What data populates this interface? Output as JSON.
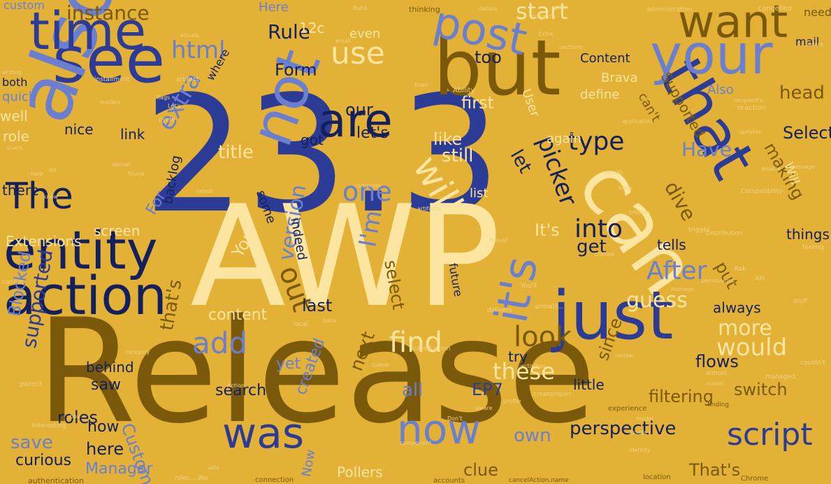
{
  "palette": {
    "background": "#e2b135",
    "navy": "#2b3b96",
    "dark_navy": "#14205e",
    "periwinkle": "#6b7fd1",
    "olive": "#7a5a0a",
    "cream": "#fbe5a1"
  },
  "words": [
    {
      "text": "23.3",
      "cls": "navy"
    },
    {
      "text": "AWP",
      "cls": "cream"
    },
    {
      "text": "Release",
      "cls": "olive"
    },
    {
      "text": "but",
      "cls": "olive"
    },
    {
      "text": "can",
      "cls": "cream"
    },
    {
      "text": "see",
      "cls": "navy"
    },
    {
      "text": "also",
      "cls": "peri"
    },
    {
      "text": "just",
      "cls": "navy"
    },
    {
      "text": "that",
      "cls": "navy"
    },
    {
      "text": "your",
      "cls": "peri"
    },
    {
      "text": "time",
      "cls": "navy"
    },
    {
      "text": "want",
      "cls": "olive"
    },
    {
      "text": "entity",
      "cls": "dark"
    },
    {
      "text": "action",
      "cls": "dark"
    },
    {
      "text": "not",
      "cls": "peri"
    },
    {
      "text": "are",
      "cls": "dark"
    },
    {
      "text": "post",
      "cls": "peri"
    },
    {
      "text": "The",
      "cls": "dark"
    },
    {
      "text": "it's",
      "cls": "peri"
    },
    {
      "text": "was",
      "cls": "navy"
    },
    {
      "text": "now",
      "cls": "peri"
    },
    {
      "text": "will",
      "cls": "cream"
    },
    {
      "text": "script",
      "cls": "navy"
    },
    {
      "text": "find",
      "cls": "cream"
    },
    {
      "text": "add",
      "cls": "peri"
    },
    {
      "text": "use",
      "cls": "cream"
    },
    {
      "text": "one",
      "cls": "peri"
    },
    {
      "text": "look",
      "cls": "olive"
    },
    {
      "text": "these",
      "cls": "cream"
    },
    {
      "text": "would",
      "cls": "cream"
    },
    {
      "text": "into",
      "cls": "dark"
    },
    {
      "text": "After",
      "cls": "peri"
    },
    {
      "text": "type",
      "cls": "dark"
    },
    {
      "text": "out",
      "cls": "olive"
    },
    {
      "text": "html",
      "cls": "peri"
    },
    {
      "text": "version",
      "cls": "peri"
    },
    {
      "text": "I'm",
      "cls": "peri"
    },
    {
      "text": "picker",
      "cls": "dark"
    },
    {
      "text": "guess",
      "cls": "cream"
    },
    {
      "text": "more",
      "cls": "cream"
    },
    {
      "text": "instance",
      "cls": "olive"
    },
    {
      "text": "start",
      "cls": "cream"
    },
    {
      "text": "extra",
      "cls": "peri"
    },
    {
      "text": "Rule",
      "cls": "dark"
    },
    {
      "text": "Form",
      "cls": "dark"
    },
    {
      "text": "our",
      "cls": "dark"
    },
    {
      "text": "let's",
      "cls": "dark"
    },
    {
      "text": "title",
      "cls": "cream"
    },
    {
      "text": "still",
      "cls": "cream"
    },
    {
      "text": "let",
      "cls": "dark"
    },
    {
      "text": "like",
      "cls": "cream"
    },
    {
      "text": "too",
      "cls": "dark"
    },
    {
      "text": "first",
      "cls": "cream"
    },
    {
      "text": "Have",
      "cls": "peri"
    },
    {
      "text": "head",
      "cls": "olive"
    },
    {
      "text": "Select",
      "cls": "dark"
    },
    {
      "text": "making",
      "cls": "olive"
    },
    {
      "text": "dive",
      "cls": "olive"
    },
    {
      "text": "put",
      "cls": "olive"
    },
    {
      "text": "It's",
      "cls": "cream"
    },
    {
      "text": "get",
      "cls": "dark"
    },
    {
      "text": "last",
      "cls": "dark"
    },
    {
      "text": "select",
      "cls": "olive"
    },
    {
      "text": "You",
      "cls": "cream"
    },
    {
      "text": "content",
      "cls": "cream"
    },
    {
      "text": "that's",
      "cls": "olive"
    },
    {
      "text": "supported",
      "cls": "navy"
    },
    {
      "text": "Blocked",
      "cls": "peri"
    },
    {
      "text": "save",
      "cls": "peri"
    },
    {
      "text": "roles",
      "cls": "dark"
    },
    {
      "text": "how",
      "cls": "dark"
    },
    {
      "text": "curious",
      "cls": "dark"
    },
    {
      "text": "Manager",
      "cls": "peri"
    },
    {
      "text": "here",
      "cls": "dark"
    },
    {
      "text": "Custom",
      "cls": "peri"
    },
    {
      "text": "perspective",
      "cls": "dark"
    },
    {
      "text": "own",
      "cls": "peri"
    },
    {
      "text": "clue",
      "cls": "olive"
    },
    {
      "text": "That's",
      "cls": "olive"
    },
    {
      "text": "switch",
      "cls": "olive"
    },
    {
      "text": "filtering",
      "cls": "olive"
    },
    {
      "text": "flows",
      "cls": "dark"
    },
    {
      "text": "since",
      "cls": "olive"
    },
    {
      "text": "EP7",
      "cls": "navy"
    },
    {
      "text": "all",
      "cls": "peri"
    },
    {
      "text": "next",
      "cls": "olive"
    },
    {
      "text": "search",
      "cls": "dark"
    },
    {
      "text": "saw",
      "cls": "dark"
    },
    {
      "text": "behind",
      "cls": "dark"
    },
    {
      "text": "yet",
      "cls": "peri"
    },
    {
      "text": "created",
      "cls": "peri"
    },
    {
      "text": "little",
      "cls": "dark"
    },
    {
      "text": "try",
      "cls": "dark"
    },
    {
      "text": "always",
      "cls": "dark"
    },
    {
      "text": "tells",
      "cls": "dark"
    },
    {
      "text": "things",
      "cls": "dark"
    },
    {
      "text": "screen",
      "cls": "cream"
    },
    {
      "text": "Extensions",
      "cls": "cream"
    },
    {
      "text": "For",
      "cls": "peri"
    },
    {
      "text": "there",
      "cls": "dark"
    },
    {
      "text": "role",
      "cls": "cream"
    },
    {
      "text": "well",
      "cls": "cream"
    },
    {
      "text": "quick",
      "cls": "peri"
    },
    {
      "text": "both",
      "cls": "dark"
    },
    {
      "text": "custom",
      "cls": "peri"
    },
    {
      "text": "link",
      "cls": "dark"
    },
    {
      "text": "nice",
      "cls": "dark"
    },
    {
      "text": "backlog",
      "cls": "dark"
    },
    {
      "text": "got",
      "cls": "dark"
    },
    {
      "text": "indeed",
      "cls": "dark"
    },
    {
      "text": "some",
      "cls": "dark"
    },
    {
      "text": "Here",
      "cls": "peri"
    },
    {
      "text": "12c",
      "cls": "cream"
    },
    {
      "text": "even",
      "cls": "cream"
    },
    {
      "text": "Content",
      "cls": "dark"
    },
    {
      "text": "Brava",
      "cls": "cream"
    },
    {
      "text": "define",
      "cls": "cream"
    },
    {
      "text": "User",
      "cls": "cream"
    },
    {
      "text": "again",
      "cls": "cream"
    },
    {
      "text": "Supported",
      "cls": "olive"
    },
    {
      "text": "can't",
      "cls": "olive"
    },
    {
      "text": "Also",
      "cls": "peri"
    },
    {
      "text": "mail",
      "cls": "dark"
    },
    {
      "text": "Pollers",
      "cls": "cream"
    },
    {
      "text": "Now",
      "cls": "peri"
    },
    {
      "text": "future",
      "cls": "dark"
    },
    {
      "text": "list",
      "cls": "cream"
    },
    {
      "text": "Will",
      "cls": "cream"
    },
    {
      "text": "where",
      "cls": "dark"
    },
    {
      "text": "need",
      "cls": "olive"
    },
    {
      "text": "thinking",
      "cls": "olive"
    },
    {
      "text": "Build",
      "cls": "pale"
    },
    {
      "text": "administration",
      "cls": "pale"
    },
    {
      "text": "cancelled",
      "cls": "pale"
    },
    {
      "text": "authentication",
      "cls": "olive"
    },
    {
      "text": "connection",
      "cls": "olive"
    },
    {
      "text": "accounts",
      "cls": "olive"
    },
    {
      "text": "Chrome",
      "cls": "olive"
    },
    {
      "text": "location",
      "cls": "olive"
    },
    {
      "text": "cancelAction.name",
      "cls": "olive"
    },
    {
      "text": "Ability",
      "cls": "pale"
    },
    {
      "text": "installment",
      "cls": "pale"
    },
    {
      "text": "artifact",
      "cls": "pale"
    },
    {
      "text": "cycle",
      "cls": "pale"
    },
    {
      "text": "latest",
      "cls": "pale"
    },
    {
      "text": "computer",
      "cls": "pale"
    },
    {
      "text": "Compatibility",
      "cls": "pale"
    },
    {
      "text": "reaction",
      "cls": "pale"
    },
    {
      "text": "stuff",
      "cls": "pale"
    },
    {
      "text": "feeling",
      "cls": "pale"
    },
    {
      "text": "experience",
      "cls": "olive"
    },
    {
      "text": "finding",
      "cls": "olive"
    },
    {
      "text": "Interesting",
      "cls": "pale"
    },
    {
      "text": "parent",
      "cls": "pale"
    },
    {
      "text": "cannot",
      "cls": "pale"
    },
    {
      "text": "Distribution",
      "cls": "pale"
    },
    {
      "text": "API",
      "cls": "pale"
    },
    {
      "text": "trigger",
      "cls": "pale"
    },
    {
      "text": "process",
      "cls": "pale"
    },
    {
      "text": "Ask",
      "cls": "pale"
    },
    {
      "text": "manage",
      "cls": "pale"
    },
    {
      "text": "introduction",
      "cls": "pale"
    },
    {
      "text": "permissions",
      "cls": "pale"
    },
    {
      "text": "crafted",
      "cls": "pale"
    },
    {
      "text": "local",
      "cls": "pale"
    },
    {
      "text": "basic",
      "cls": "pale"
    },
    {
      "text": "category",
      "cls": "pale"
    },
    {
      "text": "queue",
      "cls": "pale"
    },
    {
      "text": "writing",
      "cls": "pale"
    },
    {
      "text": "help",
      "cls": "pale"
    },
    {
      "text": "know",
      "cls": "pale"
    },
    {
      "text": "lot",
      "cls": "pale"
    },
    {
      "text": "box",
      "cls": "pale"
    },
    {
      "text": "Action",
      "cls": "pale"
    },
    {
      "text": "Don't",
      "cls": "pale"
    },
    {
      "text": "aware",
      "cls": "pale"
    },
    {
      "text": "almost",
      "cls": "pale"
    },
    {
      "text": "mixed",
      "cls": "pale"
    },
    {
      "text": "managed",
      "cls": "pale"
    },
    {
      "text": "couldn't",
      "cls": "pale"
    },
    {
      "text": "message",
      "cls": "pale"
    },
    {
      "text": "recipient's",
      "cls": "pale"
    },
    {
      "text": "before",
      "cls": "pale"
    },
    {
      "text": "space",
      "cls": "pale"
    },
    {
      "text": "details",
      "cls": "pale"
    },
    {
      "text": "currently",
      "cls": "pale"
    },
    {
      "text": "application",
      "cls": "pale"
    },
    {
      "text": "Extra",
      "cls": "pale"
    },
    {
      "text": "sections",
      "cls": "pale"
    },
    {
      "text": "Even",
      "cls": "pale"
    },
    {
      "text": "Let's",
      "cls": "pale"
    },
    {
      "text": "email",
      "cls": "pale"
    },
    {
      "text": "equals",
      "cls": "pale"
    },
    {
      "text": "flags",
      "cls": "pale"
    },
    {
      "text": "leaders",
      "cls": "pale"
    },
    {
      "text": "Users",
      "cls": "pale"
    },
    {
      "text": "deliver",
      "cls": "pale"
    },
    {
      "text": "found",
      "cls": "pale"
    },
    {
      "text": "create/open",
      "cls": "pale"
    },
    {
      "text": "delivers",
      "cls": "pale"
    },
    {
      "text": "review",
      "cls": "pale"
    },
    {
      "text": "activities",
      "cls": "pale"
    },
    {
      "text": "arrow))...",
      "cls": "pale"
    },
    {
      "text": "You'll",
      "cls": "pale"
    },
    {
      "text": "model",
      "cls": "pale"
    },
    {
      "text": "assets",
      "cls": "pale"
    },
    {
      "text": "profile",
      "cls": "pale"
    },
    {
      "text": "Identity",
      "cls": "pale"
    },
    {
      "text": "component",
      "cls": "pale"
    },
    {
      "text": "roles....We",
      "cls": "pale"
    },
    {
      "text": "safe",
      "cls": "pale"
    },
    {
      "text": "artifacts",
      "cls": "pale"
    },
    {
      "text": "early",
      "cls": "pale"
    },
    {
      "text": "results",
      "cls": "pale"
    },
    {
      "text": "updates",
      "cls": "pale"
    },
    {
      "text": "enable",
      "cls": "pale"
    },
    {
      "text": "Brava!",
      "cls": "pale"
    }
  ]
}
